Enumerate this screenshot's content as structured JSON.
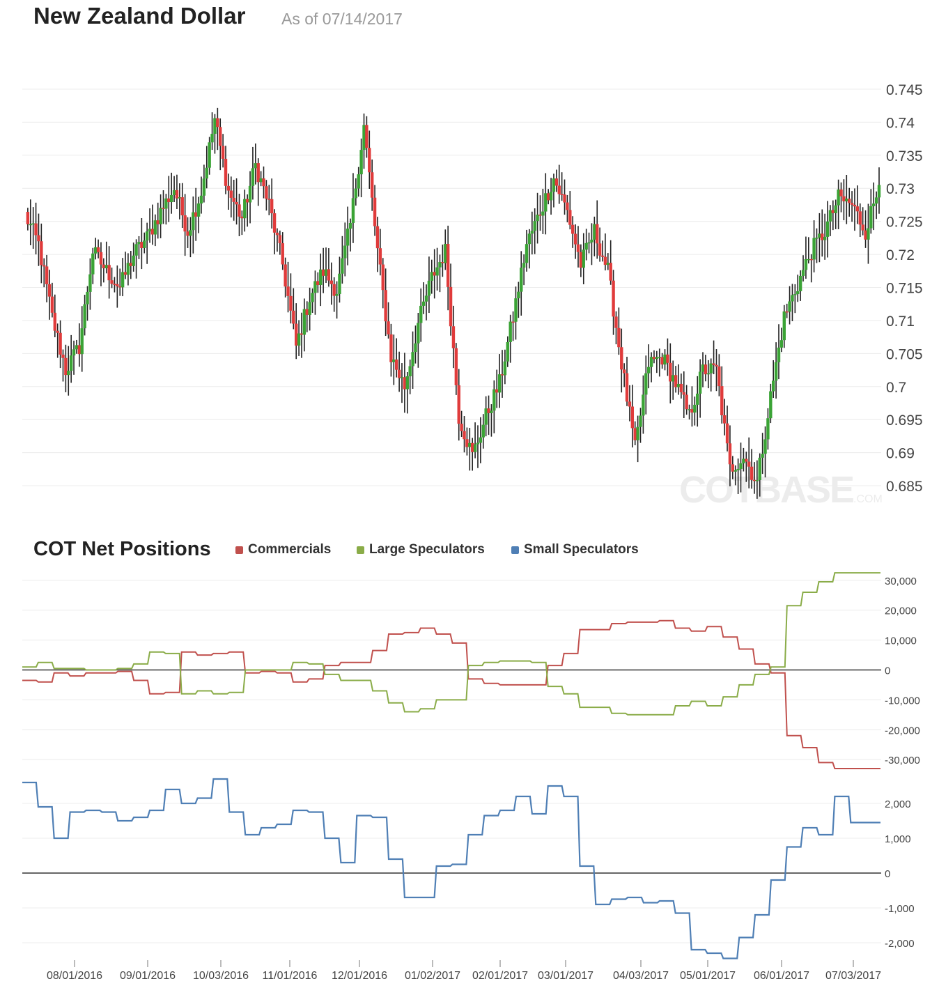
{
  "header": {
    "title": "New Zealand Dollar",
    "as_of": "As of 07/14/2017"
  },
  "cot": {
    "title": "COT Net Positions",
    "legend": [
      {
        "label": "Commercials",
        "color": "#c0504d"
      },
      {
        "label": "Large Speculators",
        "color": "#8aac48"
      },
      {
        "label": "Small Speculators",
        "color": "#4f7fb5"
      }
    ]
  },
  "watermark": {
    "text": "COTBASE",
    "suffix": ".COM"
  },
  "chart_data": [
    {
      "type": "candlestick",
      "up_color": "#3aa335",
      "down_color": "#e03b3b",
      "ylim": [
        0.681,
        0.749
      ],
      "ytick_labels": [
        "0.745",
        "0.74",
        "0.735",
        "0.73",
        "0.725",
        "0.72",
        "0.715",
        "0.71",
        "0.705",
        "0.7",
        "0.695",
        "0.69",
        "0.685"
      ],
      "weekly_close": [
        0.726,
        0.7215,
        0.7105,
        0.7025,
        0.706,
        0.7205,
        0.7175,
        0.715,
        0.72,
        0.7225,
        0.7265,
        0.73,
        0.7235,
        0.7295,
        0.7405,
        0.7295,
        0.7255,
        0.7335,
        0.7275,
        0.7185,
        0.706,
        0.7135,
        0.7175,
        0.7145,
        0.7245,
        0.7395,
        0.7205,
        0.7045,
        0.7,
        0.7095,
        0.7165,
        0.7205,
        0.6955,
        0.6895,
        0.6955,
        0.7005,
        0.7105,
        0.7215,
        0.7265,
        0.7315,
        0.7265,
        0.7185,
        0.7235,
        0.7175,
        0.7035,
        0.6905,
        0.7035,
        0.7045,
        0.7005,
        0.6955,
        0.7025,
        0.7025,
        0.6875,
        0.6895,
        0.6855,
        0.6985,
        0.7105,
        0.7155,
        0.7205,
        0.7235,
        0.7285,
        0.7275,
        0.7235,
        0.7305
      ]
    },
    {
      "type": "line",
      "step": true,
      "ylim": [
        -33000,
        33000
      ],
      "ytick_labels": [
        "30,000",
        "20,000",
        "10,000",
        "0",
        "-10,000",
        "-20,000",
        "-30,000"
      ],
      "x": [
        "2016-07-05",
        "2016-07-12",
        "2016-07-19",
        "2016-07-26",
        "2016-08-02",
        "2016-08-09",
        "2016-08-16",
        "2016-08-23",
        "2016-08-30",
        "2016-09-06",
        "2016-09-13",
        "2016-09-20",
        "2016-09-27",
        "2016-10-04",
        "2016-10-11",
        "2016-10-18",
        "2016-10-25",
        "2016-11-01",
        "2016-11-08",
        "2016-11-15",
        "2016-11-22",
        "2016-11-29",
        "2016-12-06",
        "2016-12-13",
        "2016-12-20",
        "2016-12-27",
        "2017-01-03",
        "2017-01-10",
        "2017-01-17",
        "2017-01-24",
        "2017-01-31",
        "2017-02-07",
        "2017-02-14",
        "2017-02-21",
        "2017-02-28",
        "2017-03-07",
        "2017-03-14",
        "2017-03-21",
        "2017-03-28",
        "2017-04-04",
        "2017-04-11",
        "2017-04-18",
        "2017-04-25",
        "2017-05-02",
        "2017-05-09",
        "2017-05-16",
        "2017-05-23",
        "2017-05-30",
        "2017-06-06",
        "2017-06-13",
        "2017-06-20",
        "2017-06-27",
        "2017-07-03",
        "2017-07-11"
      ],
      "series": [
        {
          "name": "Commercials",
          "color": "#c0504d",
          "values": [
            -3500,
            -4000,
            -1000,
            -2000,
            -1000,
            -1000,
            -500,
            -3500,
            -8000,
            -7500,
            6000,
            5000,
            5500,
            6000,
            -1000,
            -500,
            -1000,
            -4000,
            -3000,
            1500,
            2500,
            2500,
            6500,
            12000,
            12500,
            14000,
            12000,
            9000,
            -3000,
            -4500,
            -5000,
            -5000,
            -5000,
            1500,
            5500,
            13500,
            13500,
            15500,
            16000,
            16000,
            16500,
            14000,
            13000,
            14500,
            11000,
            7000,
            2000,
            -1000,
            -22000,
            -26000,
            -31000,
            -33000,
            -33000,
            -33000
          ]
        },
        {
          "name": "Large Speculators",
          "color": "#8aac48",
          "values": [
            1000,
            2500,
            500,
            500,
            0,
            0,
            500,
            2000,
            6000,
            5500,
            -8000,
            -7000,
            -8000,
            -7500,
            0,
            0,
            0,
            2500,
            2000,
            -1500,
            -3500,
            -3500,
            -7000,
            -11000,
            -14000,
            -13000,
            -10000,
            -10000,
            1500,
            2500,
            3000,
            3000,
            2500,
            -5500,
            -8000,
            -12500,
            -12500,
            -14500,
            -15000,
            -15000,
            -15000,
            -12000,
            -10500,
            -12000,
            -9000,
            -5000,
            -1500,
            1000,
            21500,
            26000,
            29500,
            32500,
            32500,
            32500
          ]
        }
      ]
    },
    {
      "type": "line",
      "step": true,
      "ylim": [
        -2500,
        2700
      ],
      "ytick_labels": [
        "2,000",
        "1,000",
        "0",
        "-1,000",
        "-2,000"
      ],
      "x_tick_labels": [
        "08/01/2016",
        "09/01/2016",
        "10/03/2016",
        "11/01/2016",
        "12/01/2016",
        "01/02/2017",
        "02/01/2017",
        "03/01/2017",
        "04/03/2017",
        "05/01/2017",
        "06/01/2017",
        "07/03/2017"
      ],
      "series": [
        {
          "name": "Small Speculators",
          "color": "#4f7fb5",
          "values": [
            2600,
            1900,
            1000,
            1750,
            1800,
            1750,
            1500,
            1600,
            1800,
            2400,
            2000,
            2150,
            2700,
            1750,
            1100,
            1300,
            1400,
            1800,
            1750,
            1000,
            300,
            1650,
            1600,
            400,
            -700,
            -700,
            200,
            250,
            1100,
            1650,
            1800,
            2200,
            1700,
            2500,
            2200,
            200,
            -900,
            -750,
            -700,
            -850,
            -800,
            -1150,
            -2200,
            -2300,
            -2450,
            -1850,
            -1200,
            -200,
            750,
            1300,
            1100,
            2200,
            1450,
            1450
          ]
        }
      ]
    }
  ]
}
